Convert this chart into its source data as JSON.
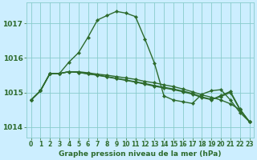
{
  "title": "Graphe pression niveau de la mer (hPa)",
  "background_color": "#cceeff",
  "grid_color": "#88cccc",
  "line_color": "#2d6b2d",
  "xlim": [
    -0.5,
    23.5
  ],
  "ylim": [
    1013.7,
    1017.6
  ],
  "yticks": [
    1014,
    1015,
    1016,
    1017
  ],
  "xticks": [
    0,
    1,
    2,
    3,
    4,
    5,
    6,
    7,
    8,
    9,
    10,
    11,
    12,
    13,
    14,
    15,
    16,
    17,
    18,
    19,
    20,
    21,
    22,
    23
  ],
  "line1": [
    1014.78,
    1015.05,
    1015.55,
    1015.55,
    1015.88,
    1016.15,
    1016.6,
    1017.1,
    1017.23,
    1017.35,
    1017.3,
    1017.2,
    1016.55,
    1015.85,
    1014.9,
    1014.78,
    1014.73,
    1014.68,
    1014.95,
    1015.05,
    1015.08,
    1014.78,
    1014.42,
    1014.15
  ],
  "line2": [
    1014.78,
    1015.05,
    1015.55,
    1015.55,
    1015.6,
    1015.6,
    1015.57,
    1015.53,
    1015.5,
    1015.46,
    1015.42,
    1015.38,
    1015.32,
    1015.28,
    1015.22,
    1015.17,
    1015.1,
    1015.02,
    1014.93,
    1014.86,
    1014.78,
    1014.67,
    1014.5,
    1014.15
  ],
  "line3": [
    1014.78,
    1015.05,
    1015.55,
    1015.55,
    1015.6,
    1015.58,
    1015.54,
    1015.5,
    1015.46,
    1015.41,
    1015.36,
    1015.31,
    1015.26,
    1015.2,
    1015.15,
    1015.1,
    1015.04,
    1014.97,
    1014.87,
    1014.8,
    1014.88,
    1015.0,
    1014.5,
    1014.15
  ],
  "line4": [
    1014.78,
    1015.05,
    1015.55,
    1015.55,
    1015.6,
    1015.58,
    1015.54,
    1015.5,
    1015.45,
    1015.4,
    1015.35,
    1015.3,
    1015.24,
    1015.18,
    1015.13,
    1015.08,
    1015.02,
    1014.95,
    1014.85,
    1014.79,
    1014.91,
    1015.03,
    1014.52,
    1014.15
  ],
  "ylabel_fontsize": 6.5,
  "xlabel_fontsize": 6.5,
  "tick_fontsize": 5.5
}
